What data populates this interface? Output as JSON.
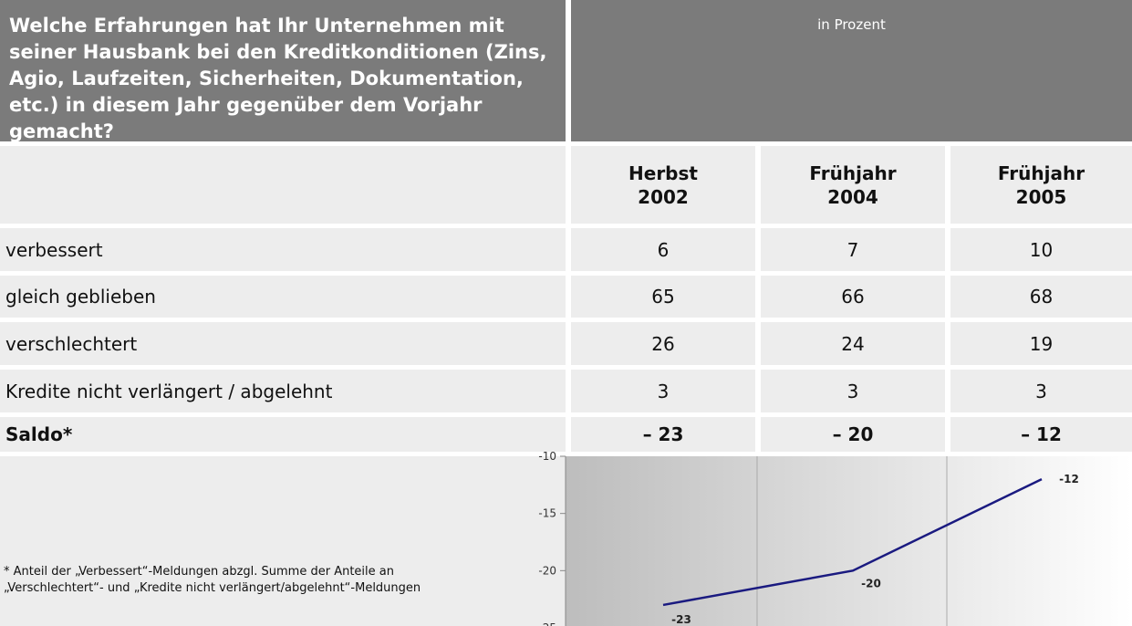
{
  "header": {
    "question": "Welche Erfahrungen hat Ihr Unternehmen mit seiner Hausbank bei den Kreditkonditionen (Zins, Agio, Laufzeiten, Sicherheiten, Dokumentation, etc.) in diesem Jahr gegenüber dem Vorjahr gemacht?",
    "unit": "in Prozent"
  },
  "table": {
    "columns": [
      "Herbst 2002",
      "Frühjahr 2004",
      "Frühjahr 2005"
    ],
    "rows": [
      {
        "label": "verbessert",
        "values": [
          6,
          7,
          10
        ]
      },
      {
        "label": "gleich geblieben",
        "values": [
          65,
          66,
          68
        ]
      },
      {
        "label": "verschlechtert",
        "values": [
          26,
          24,
          19
        ]
      },
      {
        "label": "Kredite nicht verlängert / abgelehnt",
        "values": [
          3,
          3,
          3
        ]
      },
      {
        "label": "Saldo*",
        "values": [
          "– 23",
          "– 20",
          "– 12"
        ]
      }
    ]
  },
  "footnote": "* Anteil der „Verbessert“-Meldungen abzgl. Summe der Anteile an „Verschlechtert“- und „Kredite nicht verlängert/abgelehnt“-Meldungen",
  "chart_data": {
    "type": "line",
    "values": [
      -23,
      -20,
      -12
    ],
    "color": "#1a1a80",
    "ylim": [
      -25,
      -10
    ],
    "yticks": [
      -10,
      -15,
      -20,
      -25
    ],
    "grid": true
  }
}
